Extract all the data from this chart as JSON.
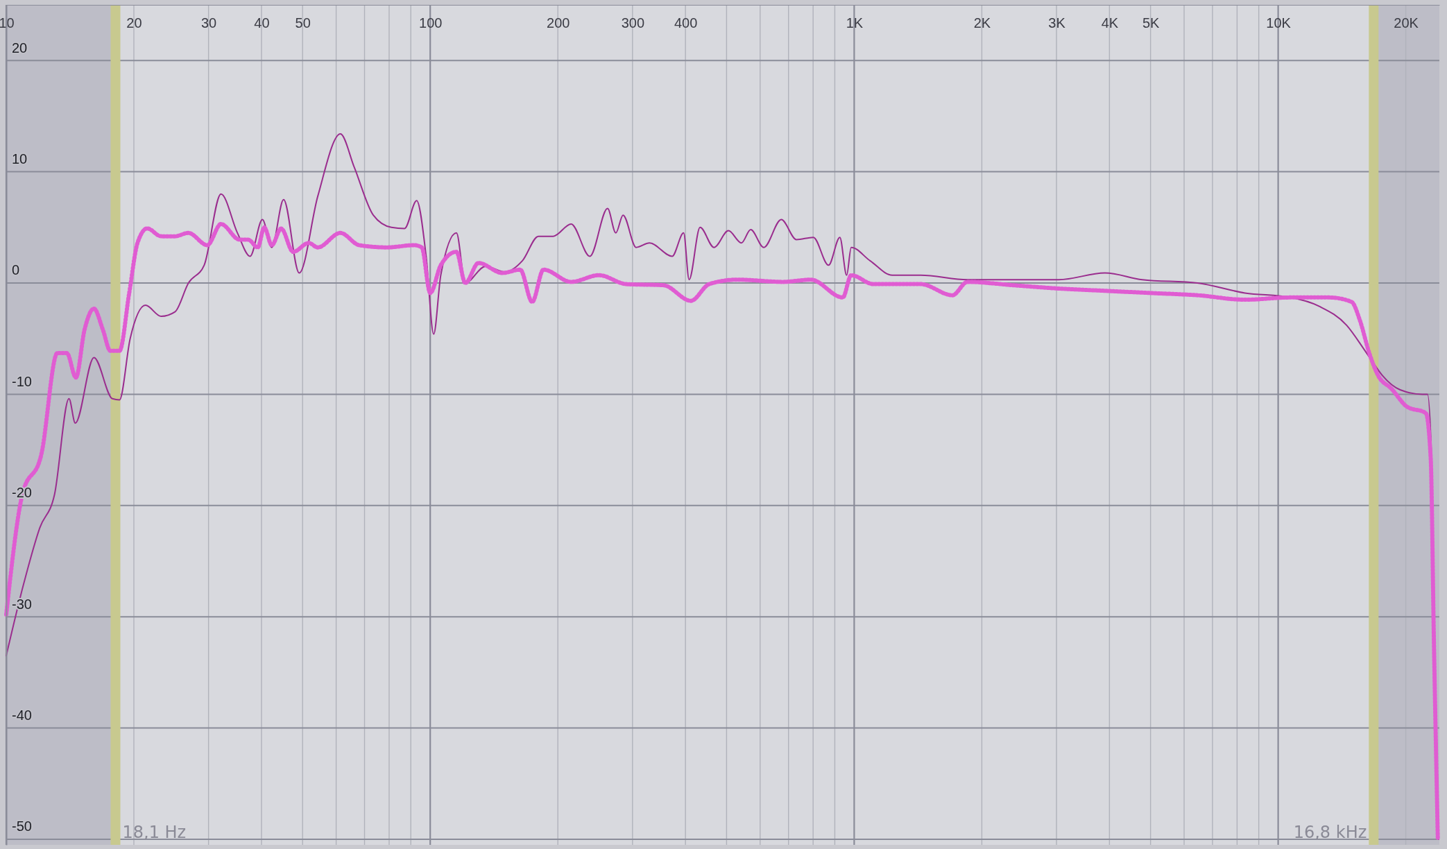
{
  "chart_data": {
    "type": "line",
    "xlim": [
      10,
      24000
    ],
    "ylim": [
      -50.5,
      25
    ],
    "log": "x",
    "grid": true,
    "xticks": [
      10,
      20,
      30,
      40,
      50,
      {
        "value": 60,
        "label": null
      },
      {
        "value": 70,
        "label": null
      },
      {
        "value": 80,
        "label": null
      },
      {
        "value": 90,
        "label": null
      },
      100,
      200,
      300,
      400,
      {
        "value": 500,
        "label": null
      },
      {
        "value": 600,
        "label": null
      },
      {
        "value": 700,
        "label": null
      },
      {
        "value": 800,
        "label": null
      },
      {
        "value": 900,
        "label": null
      },
      {
        "value": 1000,
        "label": "1K"
      },
      {
        "value": 2000,
        "label": "2K"
      },
      {
        "value": 3000,
        "label": "3K"
      },
      {
        "value": 4000,
        "label": "4K"
      },
      {
        "value": 5000,
        "label": "5K"
      },
      {
        "value": 6000,
        "label": null
      },
      {
        "value": 7000,
        "label": null
      },
      {
        "value": 8000,
        "label": null
      },
      {
        "value": 9000,
        "label": null
      },
      {
        "value": 10000,
        "label": "10K"
      },
      {
        "value": 20000,
        "label": "20K"
      }
    ],
    "yticks": [
      -50,
      -40,
      -30,
      -20,
      -10,
      0,
      10,
      20
    ],
    "bands": [
      {
        "axis": "x",
        "from": 10,
        "to": 18.1,
        "color": "#bdbdc7"
      },
      {
        "axis": "x",
        "from": 16800,
        "to": 24000,
        "color": "#bdbdc7"
      }
    ],
    "ref_lines": [
      {
        "axis": "x",
        "value": 18.1,
        "label": "18,1 Hz",
        "color": "#c8c98f"
      },
      {
        "axis": "x",
        "value": 16800,
        "label": "16,8 kHz",
        "color": "#c8c98f"
      }
    ],
    "series": [
      {
        "color": "#9a2d8e",
        "line_style": "solid",
        "x": [
          10,
          11,
          12,
          13,
          14.06,
          14.55,
          16.1,
          17.8,
          18.5,
          19.6,
          21.3,
          23.2,
          25,
          26.9,
          29.3,
          32.1,
          35.1,
          37.6,
          40.2,
          42.3,
          45.1,
          49.1,
          54.3,
          61.4,
          66.2,
          73.4,
          81,
          87,
          92.9,
          97.8,
          101.9,
          105.9,
          115.3,
          121,
          135,
          150,
          165,
          180,
          195,
          215,
          238,
          262,
          274,
          285,
          306,
          329,
          372,
          396,
          408,
          433,
          467,
          505,
          542,
          570,
          612,
          673,
          731,
          801,
          870,
          925,
          960,
          984,
          1090,
          1230,
          1435,
          1850,
          2370,
          3040,
          3900,
          4780,
          6450,
          8350,
          10700,
          12500,
          14500,
          15900,
          16700,
          17600,
          19400,
          21900,
          22500,
          23000,
          23400,
          23900
        ],
        "values": [
          -33.5,
          -27,
          -22,
          -19,
          -10.4,
          -12.6,
          -6.7,
          -10.4,
          -10.5,
          -5,
          -2,
          -3,
          -2.6,
          0,
          1.6,
          8,
          4.5,
          2.4,
          5.7,
          3.2,
          7.5,
          0.9,
          7.8,
          13.4,
          10.4,
          6.1,
          5,
          4.9,
          7.4,
          2.4,
          -4.6,
          0.7,
          4.5,
          0,
          1.5,
          1,
          2,
          4.2,
          4.2,
          5.3,
          2.4,
          6.7,
          4.5,
          6.1,
          3.2,
          3.6,
          2.4,
          4.5,
          0.3,
          5,
          3.2,
          4.7,
          3.6,
          4.8,
          3.2,
          5.7,
          3.9,
          4.1,
          1.6,
          4.1,
          0.7,
          3.2,
          2,
          0.7,
          0.7,
          0.3,
          0.3,
          0.3,
          0.9,
          0.3,
          0,
          -0.9,
          -1.3,
          -2.1,
          -3.8,
          -5.9,
          -7.1,
          -8.3,
          -9.6,
          -10,
          -10,
          -15.8,
          -32.3,
          -50
        ]
      },
      {
        "color": "#e05cd2",
        "line_style": "dotted",
        "x": [
          10,
          10.9,
          12.1,
          13.2,
          13.9,
          14.6,
          15.3,
          16.1,
          16.9,
          17.6,
          18.5,
          19.5,
          20.4,
          21.5,
          23.2,
          25,
          26.9,
          29.8,
          32.1,
          35.5,
          37.2,
          39.2,
          40.6,
          42.3,
          44.5,
          47.5,
          51.7,
          54.3,
          61.4,
          68,
          79.2,
          91.7,
          95.5,
          100,
          105.9,
          115.3,
          121,
          130,
          148,
          163,
          174,
          185,
          215,
          250,
          290,
          355,
          412,
          455,
          530,
          680,
          790,
          940,
          984,
          1110,
          1435,
          1705,
          1850,
          2370,
          3040,
          3900,
          5000,
          6450,
          8350,
          10700,
          13200,
          14900,
          15600,
          16400,
          17200,
          18500,
          20100,
          22300,
          22900,
          23300,
          23800
        ],
        "values": [
          -29.8,
          -19.1,
          -15.4,
          -6.3,
          -6.3,
          -8.5,
          -4.2,
          -2.3,
          -4.2,
          -6.1,
          -6.1,
          -0.9,
          3.6,
          4.9,
          4.2,
          4.2,
          4.5,
          3.4,
          5.3,
          3.9,
          3.9,
          3.2,
          5,
          3.4,
          4.9,
          2.8,
          3.6,
          3.2,
          4.5,
          3.4,
          3.2,
          3.4,
          3.2,
          -0.9,
          1.6,
          2.8,
          0,
          1.8,
          0.9,
          1.2,
          -1.7,
          1.2,
          0.1,
          0.7,
          -0.1,
          -0.2,
          -1.6,
          -0.1,
          0.3,
          0.1,
          0.3,
          -1.3,
          0.7,
          -0.1,
          -0.1,
          -1.1,
          0.1,
          -0.2,
          -0.5,
          -0.7,
          -0.9,
          -1.1,
          -1.5,
          -1.3,
          -1.3,
          -1.7,
          -3.4,
          -6.3,
          -8.3,
          -9.5,
          -11.1,
          -11.7,
          -15.8,
          -32.3,
          -50
        ]
      }
    ]
  }
}
